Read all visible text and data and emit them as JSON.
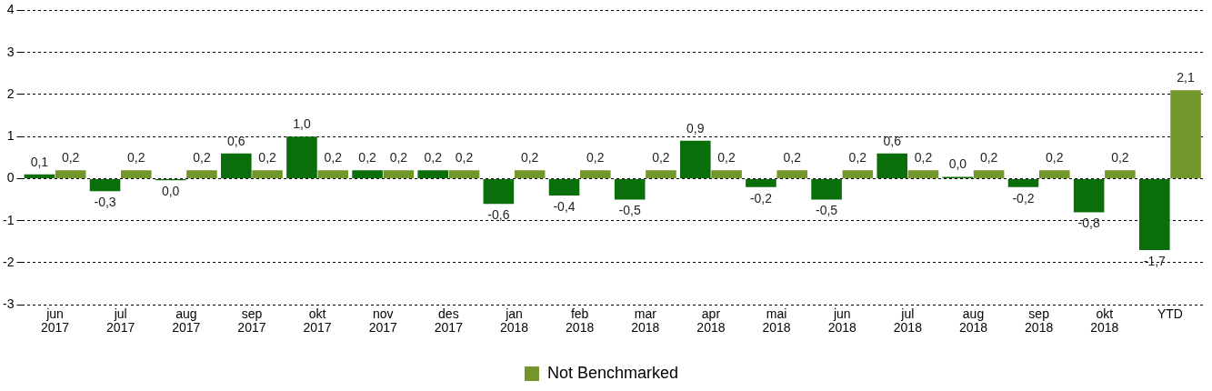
{
  "chart_data": {
    "type": "bar",
    "categories": [
      "jun 2017",
      "jul 2017",
      "aug 2017",
      "sep 2017",
      "okt 2017",
      "nov 2017",
      "des 2017",
      "jan 2018",
      "feb 2018",
      "mar 2018",
      "apr 2018",
      "mai 2018",
      "jun 2018",
      "jul 2018",
      "aug 2018",
      "sep 2018",
      "okt 2018",
      "YTD"
    ],
    "series": [
      {
        "color": "#0a6e0a",
        "values": [
          0.1,
          -0.3,
          -0.04,
          0.6,
          1.0,
          0.2,
          0.2,
          -0.6,
          -0.4,
          -0.5,
          0.9,
          -0.2,
          -0.5,
          0.6,
          0.04,
          -0.2,
          -0.8,
          -1.7
        ],
        "value_labels": [
          "0,1",
          "-0,3",
          "0,0",
          "0,6",
          "1,0",
          "0,2",
          "0,2",
          "-0,6",
          "-0,4",
          "-0,5",
          "0,9",
          "-0,2",
          "-0,5",
          "0,6",
          "0,0",
          "-0,2",
          "-0,8",
          "-1,7"
        ]
      },
      {
        "name": "Not Benchmarked",
        "color": "#72962a",
        "values": [
          0.2,
          0.2,
          0.2,
          0.2,
          0.2,
          0.2,
          0.2,
          0.2,
          0.2,
          0.2,
          0.2,
          0.2,
          0.2,
          0.2,
          0.2,
          0.2,
          0.2,
          2.1
        ],
        "value_labels": [
          "0,2",
          "0,2",
          "0,2",
          "0,2",
          "0,2",
          "0,2",
          "0,2",
          "0,2",
          "0,2",
          "0,2",
          "0,2",
          "0,2",
          "0,2",
          "0,2",
          "0,2",
          "0,2",
          "0,2",
          "2,1"
        ]
      }
    ],
    "ylim": [
      -3,
      4
    ],
    "yticks": [
      -3,
      -2,
      -1,
      0,
      1,
      2,
      3,
      4
    ],
    "grid": "y",
    "legend": "bottom"
  }
}
